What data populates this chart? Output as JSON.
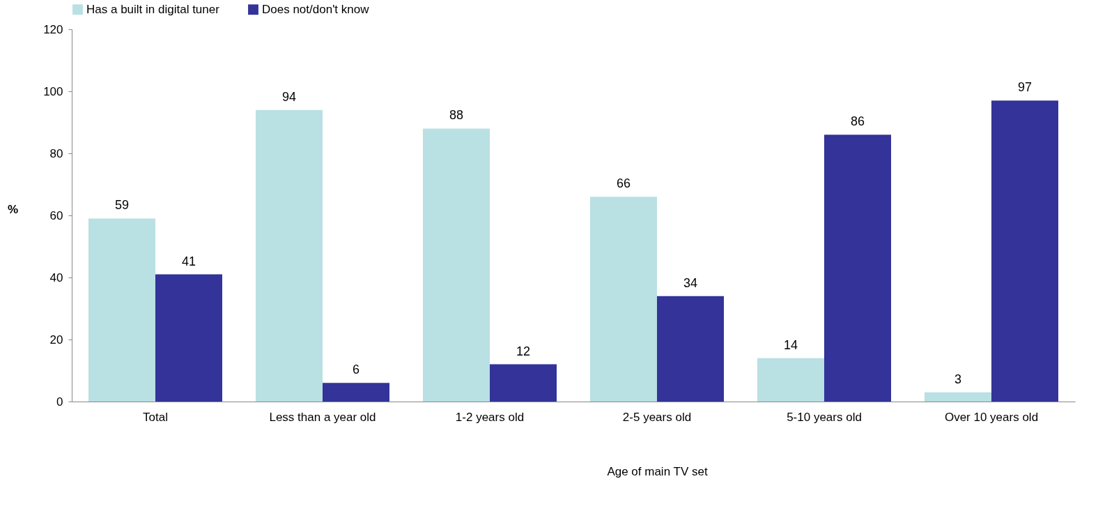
{
  "chart_data": {
    "type": "bar",
    "categories": [
      "Total",
      "Less than a year old",
      "1-2 years old",
      "2-5 years old",
      "5-10 years old",
      "Over 10 years old"
    ],
    "xlabel": "Age of main TV set",
    "ylabel": "%",
    "series": [
      {
        "name": "Has a built in digital tuner",
        "color": "#b9e0e3",
        "values": [
          59,
          94,
          88,
          66,
          14,
          3
        ]
      },
      {
        "name": "Does not/don't know",
        "color": "#333399",
        "values": [
          41,
          6,
          12,
          34,
          86,
          97
        ]
      }
    ],
    "ylim": [
      0,
      120
    ],
    "yticks": [
      0,
      20,
      40,
      60,
      80,
      100,
      120
    ],
    "grid": false,
    "legend": "top",
    "data_labels": true
  }
}
